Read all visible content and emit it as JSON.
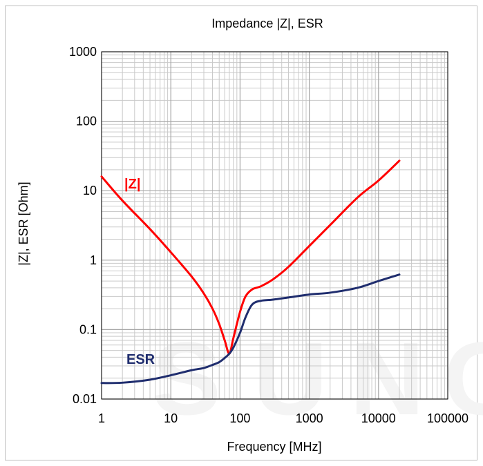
{
  "chart_data": {
    "type": "line",
    "title": "Impedance |Z|,  ESR",
    "xlabel": "Frequency [MHz]",
    "ylabel": "|Z|, ESR [Ohm]",
    "xscale": "log",
    "yscale": "log",
    "xlim": [
      1,
      100000
    ],
    "ylim": [
      0.01,
      1000
    ],
    "x_ticks": [
      "1",
      "10",
      "100",
      "1000",
      "10000",
      "100000"
    ],
    "y_ticks": [
      "0.01",
      "0.1",
      "1",
      "10",
      "100",
      "1000"
    ],
    "grid": true,
    "watermark": "SUNG",
    "colors": {
      "z": "#ff0000",
      "esr": "#1f2d6e",
      "grid": "#a6a6a6"
    },
    "series": [
      {
        "name": "|Z|",
        "color": "#ff0000",
        "x": [
          1,
          2,
          5,
          10,
          20,
          30,
          40,
          50,
          60,
          70,
          80,
          100,
          120,
          150,
          200,
          300,
          500,
          1000,
          2000,
          5000,
          10000,
          20000
        ],
        "y": [
          16,
          7.2,
          2.8,
          1.3,
          0.58,
          0.33,
          0.2,
          0.12,
          0.07,
          0.045,
          0.075,
          0.18,
          0.3,
          0.38,
          0.42,
          0.53,
          0.8,
          1.6,
          3.2,
          8,
          14,
          27
        ]
      },
      {
        "name": "ESR",
        "color": "#1f2d6e",
        "x": [
          1,
          2,
          5,
          10,
          20,
          30,
          40,
          50,
          60,
          70,
          80,
          100,
          120,
          150,
          200,
          300,
          500,
          1000,
          2000,
          5000,
          10000,
          20000
        ],
        "y": [
          0.017,
          0.0172,
          0.019,
          0.022,
          0.026,
          0.028,
          0.031,
          0.034,
          0.039,
          0.045,
          0.055,
          0.09,
          0.15,
          0.23,
          0.26,
          0.27,
          0.29,
          0.32,
          0.34,
          0.4,
          0.5,
          0.62
        ]
      }
    ],
    "annotations": [
      {
        "text": "|Z|",
        "series": "|Z|"
      },
      {
        "text": "ESR",
        "series": "ESR"
      }
    ]
  }
}
